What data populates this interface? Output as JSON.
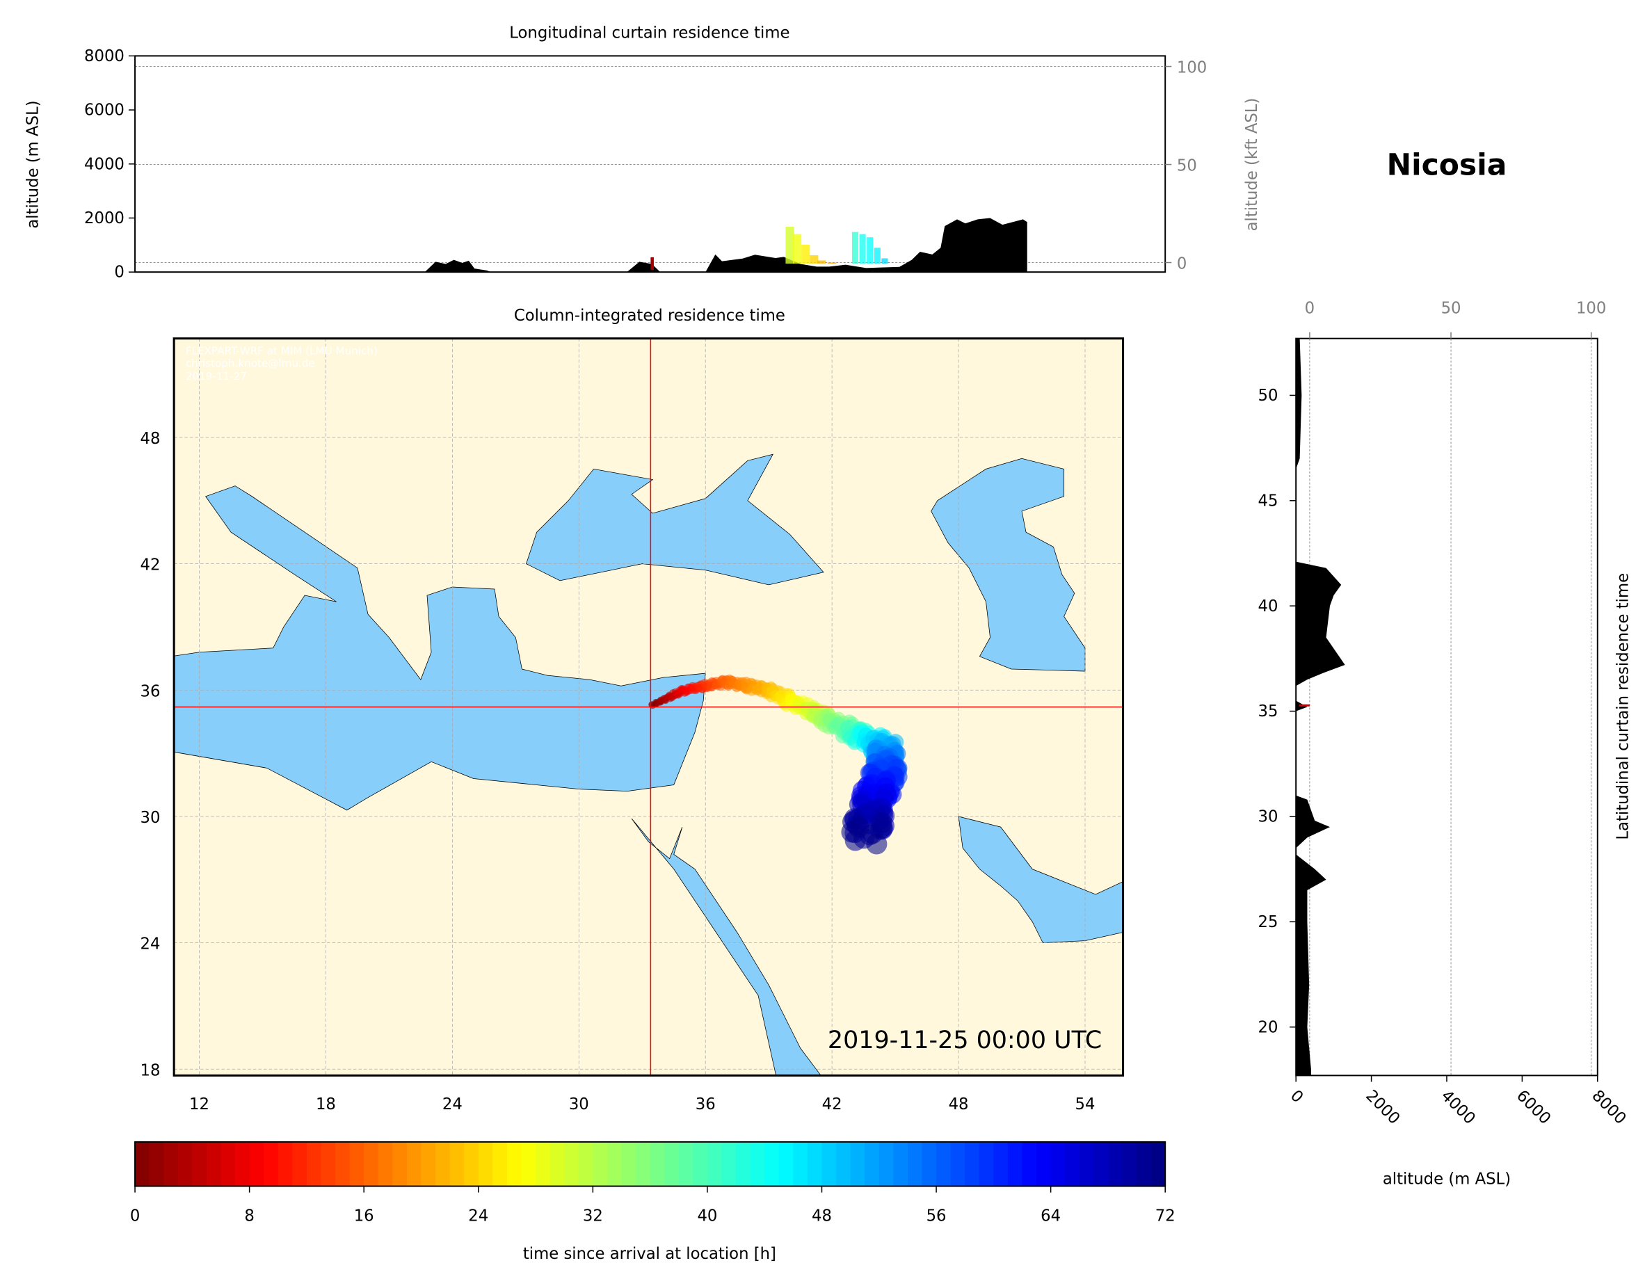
{
  "location_name": "Nicosia",
  "watermark": [
    "FLEXPART-WRF at MIM (LMU Munich)",
    "christoph.knote@lmu.de",
    "2019-11-27"
  ],
  "colors": {
    "land": "#fff8dc",
    "sea": "#87cefa",
    "terrain": "#000000",
    "crosshair": "#ff0000"
  },
  "chart_data": [
    {
      "type": "area",
      "title": "Longitudinal curtain residence time",
      "ylabel": "altitude (m ASL)",
      "ylabel_right": "altitude (kft ASL)",
      "ylim": [
        0,
        8000
      ],
      "yticks": [
        "0",
        "2000",
        "4000",
        "6000",
        "8000"
      ],
      "yticks_right": [
        "0",
        "50",
        "100"
      ],
      "grid": true,
      "terrain_lon": [
        23.46,
        23.93,
        24.37,
        24.73,
        25.09,
        25.38,
        25.63,
        26.17,
        26.35,
        32.29,
        32.83,
        33.38,
        33.74,
        35.72,
        36.15,
        36.44,
        37.34,
        37.88,
        38.78,
        39.14,
        39.86,
        40.58,
        41.12,
        41.84,
        42.74,
        43.47,
        44.19,
        44.73,
        45.09,
        45.63,
        45.99,
        46.17,
        46.71,
        47.07,
        47.61,
        48.15,
        48.69,
        49.59,
        49.77
      ],
      "terrain_alt": [
        0,
        380,
        300,
        450,
        340,
        420,
        130,
        60,
        0,
        0,
        380,
        300,
        0,
        0,
        650,
        400,
        500,
        640,
        520,
        560,
        300,
        200,
        200,
        270,
        150,
        170,
        190,
        450,
        750,
        650,
        900,
        1700,
        1950,
        1800,
        1950,
        2000,
        1750,
        1950,
        1850
      ]
    },
    {
      "type": "heatmap",
      "title": "Column-integrated residence time",
      "xticks": [
        "12",
        "18",
        "24",
        "30",
        "36",
        "42",
        "48",
        "54"
      ],
      "yticks": [
        "18",
        "24",
        "30",
        "36",
        "42",
        "48"
      ],
      "xlim": [
        10.8,
        55.8
      ],
      "ylim": [
        17.7,
        52.7
      ],
      "crosshair": {
        "lon": 33.4,
        "lat": 35.2
      },
      "timestamp": "2019-11-25 00:00 UTC",
      "plume_path": [
        [
          33.5,
          35.3,
          0
        ],
        [
          35,
          36,
          8
        ],
        [
          37,
          36.4,
          16
        ],
        [
          39,
          36,
          22
        ],
        [
          41,
          35,
          30
        ],
        [
          43,
          34,
          40
        ],
        [
          44.5,
          33.3,
          50
        ],
        [
          44.6,
          32.2,
          58
        ],
        [
          44,
          30.8,
          64
        ],
        [
          43.6,
          29,
          72
        ]
      ]
    },
    {
      "type": "area",
      "ylabel_right": "Latitudinal curtain residence time",
      "xlabel": "altitude (m ASL)",
      "xticks": [
        "0",
        "2000",
        "4000",
        "6000",
        "8000"
      ],
      "xticks_top": [
        "0",
        "50",
        "100"
      ],
      "yticks": [
        "20",
        "25",
        "30",
        "35",
        "40",
        "45",
        "50"
      ],
      "xlim": [
        0,
        8000
      ],
      "ylim": [
        17.7,
        52.7
      ],
      "terrain_lat": [
        52.7,
        50,
        47,
        46.5,
        42.1,
        41.8,
        41,
        40.5,
        40,
        38.5,
        37.2,
        36.8,
        36.5,
        36.2,
        35.5,
        35.2,
        35,
        31,
        30.8,
        29.8,
        29.5,
        29,
        28.5,
        28.2,
        27.5,
        27,
        26.5,
        25,
        22,
        20,
        18,
        17.7
      ],
      "terrain_alt": [
        100,
        150,
        100,
        0,
        0,
        800,
        1200,
        1000,
        900,
        800,
        1300,
        700,
        300,
        0,
        0,
        300,
        0,
        0,
        300,
        500,
        900,
        300,
        0,
        0,
        500,
        800,
        300,
        300,
        350,
        300,
        400,
        400
      ]
    },
    {
      "type": "colorbar",
      "label": "time since arrival at location [h]",
      "range": [
        0,
        72
      ],
      "ticks": [
        "0",
        "8",
        "16",
        "24",
        "32",
        "40",
        "48",
        "56",
        "64",
        "72"
      ],
      "colormap": "jet_r"
    }
  ]
}
